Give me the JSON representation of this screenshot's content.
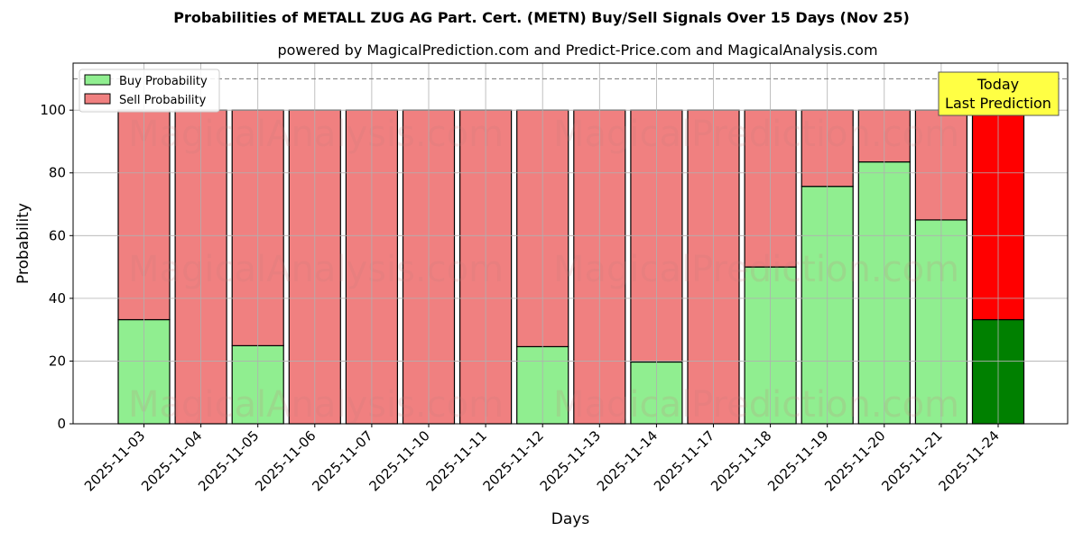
{
  "title": "Probabilities of METALL ZUG AG Part. Cert. (METN) Buy/Sell Signals Over 15 Days (Nov 25)",
  "subtitle": "powered by MagicalPrediction.com and Predict-Price.com and MagicalAnalysis.com",
  "watermarks": [
    "MagicalAnalysis.com",
    "MagicalPrediction.com"
  ],
  "annotation": {
    "line1": "Today",
    "line2": "Last Prediction"
  },
  "colors": {
    "buy": "#90ee90",
    "sell": "#f08080",
    "buy_today": "#008000",
    "sell_today": "#ff0000",
    "annotation_bg": "#ffff44"
  },
  "chart_data": {
    "type": "bar",
    "stacked": true,
    "title": "Probabilities of METALL ZUG AG Part. Cert. (METN) Buy/Sell Signals Over 15 Days (Nov 25)",
    "xlabel": "Days",
    "ylabel": "Probability",
    "ylim": [
      0,
      115
    ],
    "yticks": [
      0,
      20,
      40,
      60,
      80,
      100
    ],
    "grid": true,
    "legend_position": "upper left",
    "reference_line": 110,
    "categories": [
      "2025-11-03",
      "2025-11-04",
      "2025-11-05",
      "2025-11-06",
      "2025-11-07",
      "2025-11-10",
      "2025-11-11",
      "2025-11-12",
      "2025-11-13",
      "2025-11-14",
      "2025-11-17",
      "2025-11-18",
      "2025-11-19",
      "2025-11-20",
      "2025-11-21",
      "2025-11-24"
    ],
    "series": [
      {
        "name": "Buy Probability",
        "values": [
          33.2,
          0,
          24.9,
          0,
          0,
          0,
          0,
          24.6,
          0,
          19.7,
          0,
          50.0,
          75.7,
          83.5,
          65.0,
          33.2
        ]
      },
      {
        "name": "Sell Probability",
        "values": [
          66.8,
          100,
          75.1,
          100,
          100,
          100,
          100,
          75.4,
          100,
          80.3,
          100,
          50.0,
          24.3,
          16.5,
          35.0,
          66.8
        ]
      }
    ]
  }
}
